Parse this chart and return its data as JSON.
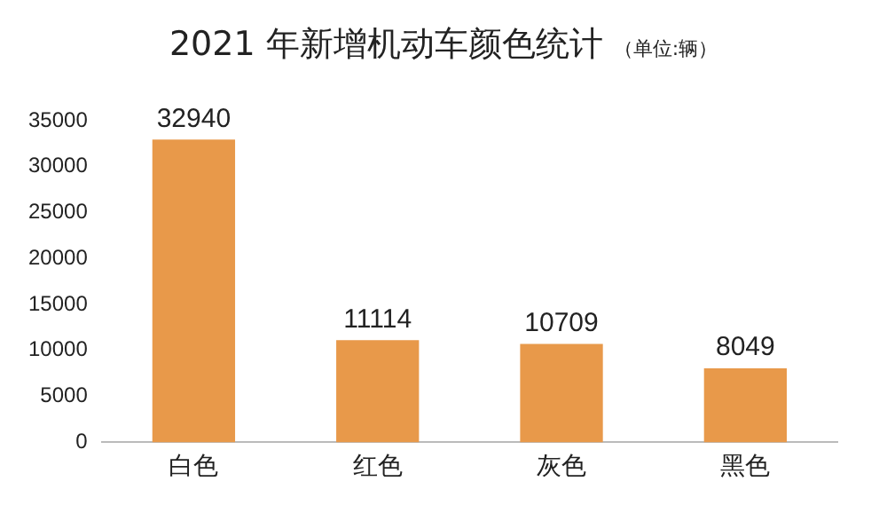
{
  "chart_data": {
    "type": "bar",
    "title": "2021 年新增机动车颜色统计",
    "subtitle": "（单位:辆）",
    "categories": [
      "白色",
      "红色",
      "灰色",
      "黑色"
    ],
    "values": [
      32940,
      11114,
      10709,
      8049
    ],
    "color": "#e8994a",
    "ylim": [
      0,
      35000
    ],
    "yticks": [
      0,
      5000,
      10000,
      15000,
      20000,
      25000,
      30000,
      35000
    ],
    "grid": false,
    "data_labels": true
  }
}
